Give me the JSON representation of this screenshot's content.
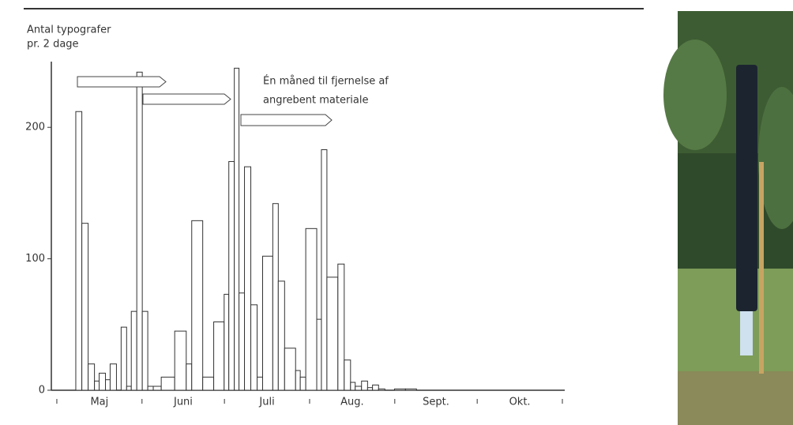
{
  "chart_data": {
    "type": "histogram",
    "y_title_lines": [
      "Antal typografer",
      "pr. 2 dage"
    ],
    "annotation_lines": [
      "Én måned til fjernelse af",
      "angrebent materiale"
    ],
    "bins": [
      6.9,
      9.1,
      11.4,
      13.7,
      15.4,
      17.7,
      19.4,
      21.7,
      23.4,
      25.4,
      27.1,
      29.1,
      31.1,
      33.1,
      35.1,
      38,
      42.9,
      47.1,
      49.1,
      53.1,
      57.1,
      60.9,
      62.6,
      64.6,
      66.3,
      68.3,
      70.6,
      72.9,
      74.9,
      78.6,
      80.6,
      82.9,
      86.9,
      88.6,
      90.6,
      94.6,
      96.3,
      98.3,
      102.3,
      104.6,
      106.9,
      108.6,
      110.9,
      113.1,
      114.9,
      117.1,
      119.4,
      122.9,
      126.9,
      130.9
    ],
    "values": [
      212,
      127,
      20,
      7,
      13,
      8,
      20,
      0,
      48,
      3,
      60,
      242,
      60,
      3,
      3,
      10,
      45,
      20,
      129,
      10,
      52,
      73,
      174,
      245,
      74,
      170,
      65,
      10,
      102,
      142,
      83,
      32,
      15,
      10,
      123,
      54,
      183,
      86,
      96,
      23,
      6,
      3,
      7,
      2,
      4,
      1,
      0,
      1,
      1
    ],
    "color": "#ffffff",
    "edge_color": "#333333",
    "xlim": [
      -2,
      184
    ],
    "month_boundaries": [
      0,
      31,
      61,
      92,
      123,
      153,
      184
    ],
    "month_labels": [
      "Maj",
      "Juni",
      "Juli",
      "Aug.",
      "Sept.",
      "Okt."
    ],
    "ylim": [
      0,
      250
    ],
    "yticks": [
      0,
      100,
      200
    ],
    "grid": false
  }
}
